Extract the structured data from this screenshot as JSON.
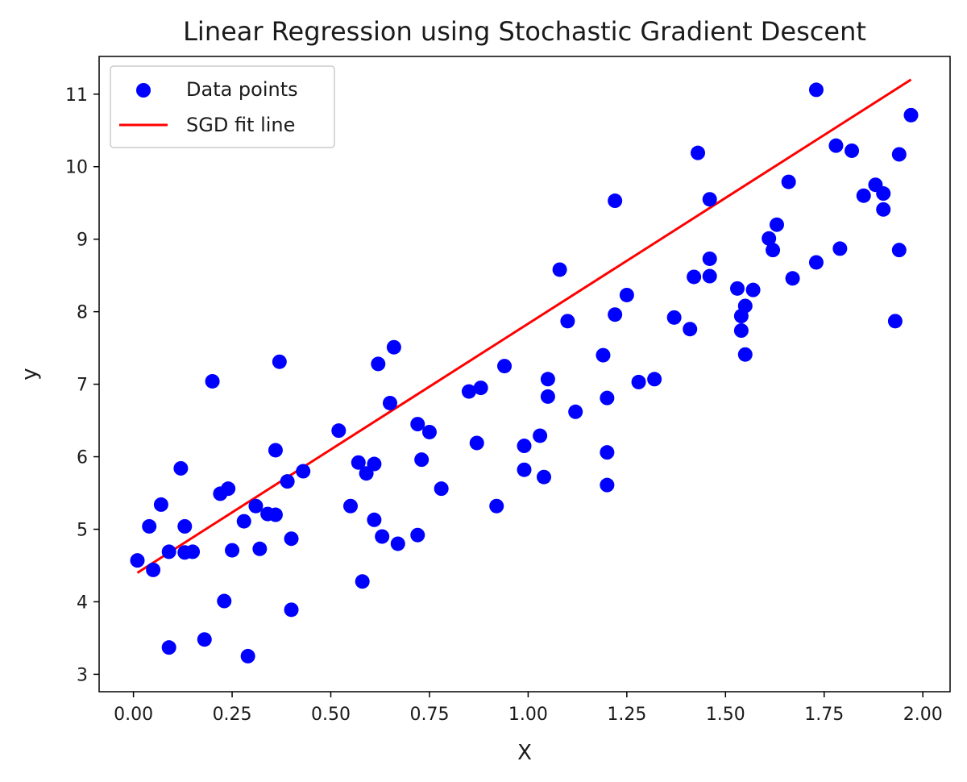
{
  "chart_data": {
    "type": "scatter",
    "title": "Linear Regression using Stochastic Gradient Descent",
    "xlabel": "X",
    "ylabel": "y",
    "xlim": [
      -0.087,
      2.069
    ],
    "ylim": [
      2.76,
      11.52
    ],
    "grid": false,
    "legend_position": "top-left",
    "x_ticks": [
      0.0,
      0.25,
      0.5,
      0.75,
      1.0,
      1.25,
      1.5,
      1.75,
      2.0
    ],
    "x_tick_labels": [
      "0.00",
      "0.25",
      "0.50",
      "0.75",
      "1.00",
      "1.25",
      "1.50",
      "1.75",
      "2.00"
    ],
    "y_ticks": [
      3,
      4,
      5,
      6,
      7,
      8,
      9,
      10,
      11
    ],
    "y_tick_labels": [
      "3",
      "4",
      "5",
      "6",
      "7",
      "8",
      "9",
      "10",
      "11"
    ],
    "series": [
      {
        "name": "Data points",
        "kind": "scatter",
        "color": "#0000ff",
        "points": [
          [
            0.01,
            4.57
          ],
          [
            0.04,
            5.04
          ],
          [
            0.05,
            4.44
          ],
          [
            0.07,
            5.34
          ],
          [
            0.09,
            4.69
          ],
          [
            0.09,
            3.37
          ],
          [
            0.12,
            5.84
          ],
          [
            0.13,
            5.04
          ],
          [
            0.13,
            4.68
          ],
          [
            0.15,
            4.69
          ],
          [
            0.18,
            3.48
          ],
          [
            0.2,
            7.04
          ],
          [
            0.22,
            5.49
          ],
          [
            0.23,
            4.01
          ],
          [
            0.24,
            5.56
          ],
          [
            0.25,
            4.71
          ],
          [
            0.28,
            5.11
          ],
          [
            0.29,
            3.25
          ],
          [
            0.31,
            5.32
          ],
          [
            0.32,
            4.73
          ],
          [
            0.34,
            5.21
          ],
          [
            0.36,
            5.2
          ],
          [
            0.36,
            6.09
          ],
          [
            0.37,
            7.31
          ],
          [
            0.39,
            5.66
          ],
          [
            0.4,
            4.87
          ],
          [
            0.4,
            3.89
          ],
          [
            0.43,
            5.8
          ],
          [
            0.52,
            6.36
          ],
          [
            0.55,
            5.32
          ],
          [
            0.57,
            5.92
          ],
          [
            0.58,
            4.28
          ],
          [
            0.59,
            5.77
          ],
          [
            0.61,
            5.9
          ],
          [
            0.61,
            5.13
          ],
          [
            0.62,
            7.28
          ],
          [
            0.63,
            4.9
          ],
          [
            0.65,
            6.74
          ],
          [
            0.66,
            7.51
          ],
          [
            0.67,
            4.8
          ],
          [
            0.72,
            6.45
          ],
          [
            0.72,
            4.92
          ],
          [
            0.73,
            5.96
          ],
          [
            0.75,
            6.34
          ],
          [
            0.78,
            5.56
          ],
          [
            0.85,
            6.9
          ],
          [
            0.87,
            6.19
          ],
          [
            0.88,
            6.95
          ],
          [
            0.92,
            5.32
          ],
          [
            0.94,
            7.25
          ],
          [
            0.99,
            6.15
          ],
          [
            0.99,
            5.82
          ],
          [
            1.03,
            6.29
          ],
          [
            1.04,
            5.72
          ],
          [
            1.05,
            7.07
          ],
          [
            1.05,
            6.83
          ],
          [
            1.08,
            8.58
          ],
          [
            1.1,
            7.87
          ],
          [
            1.12,
            6.62
          ],
          [
            1.19,
            7.4
          ],
          [
            1.2,
            6.06
          ],
          [
            1.2,
            5.61
          ],
          [
            1.2,
            6.81
          ],
          [
            1.22,
            9.53
          ],
          [
            1.22,
            7.96
          ],
          [
            1.25,
            8.23
          ],
          [
            1.28,
            7.03
          ],
          [
            1.32,
            7.07
          ],
          [
            1.37,
            7.92
          ],
          [
            1.41,
            7.76
          ],
          [
            1.42,
            8.48
          ],
          [
            1.43,
            10.19
          ],
          [
            1.46,
            9.55
          ],
          [
            1.46,
            8.73
          ],
          [
            1.46,
            8.49
          ],
          [
            1.53,
            8.32
          ],
          [
            1.54,
            7.94
          ],
          [
            1.54,
            7.74
          ],
          [
            1.55,
            8.08
          ],
          [
            1.55,
            7.41
          ],
          [
            1.57,
            8.3
          ],
          [
            1.61,
            9.01
          ],
          [
            1.62,
            8.85
          ],
          [
            1.63,
            9.2
          ],
          [
            1.66,
            9.79
          ],
          [
            1.67,
            8.46
          ],
          [
            1.73,
            11.06
          ],
          [
            1.73,
            8.68
          ],
          [
            1.78,
            10.29
          ],
          [
            1.79,
            8.87
          ],
          [
            1.82,
            10.22
          ],
          [
            1.85,
            9.6
          ],
          [
            1.88,
            9.75
          ],
          [
            1.9,
            9.63
          ],
          [
            1.9,
            9.41
          ],
          [
            1.93,
            7.87
          ],
          [
            1.94,
            10.17
          ],
          [
            1.94,
            8.85
          ],
          [
            1.97,
            10.71
          ]
        ]
      },
      {
        "name": "SGD fit line",
        "kind": "line",
        "color": "#ff0000",
        "points": [
          [
            0.01,
            4.4
          ],
          [
            1.97,
            11.2
          ]
        ]
      }
    ]
  }
}
